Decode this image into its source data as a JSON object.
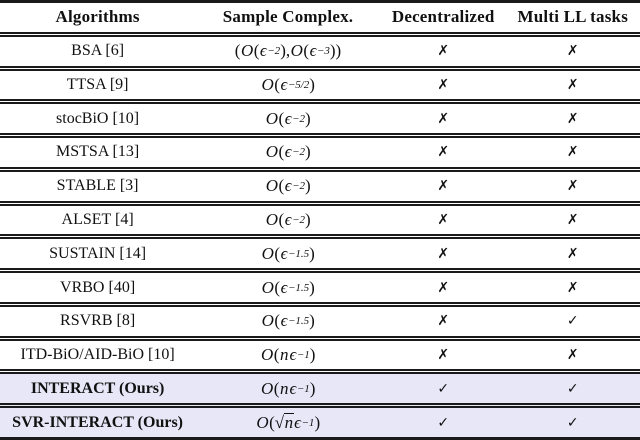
{
  "colors": {
    "highlight_row_bg": "#e7e7f8",
    "rule": "#1a1a1a",
    "text": "#111111"
  },
  "marks": {
    "yes": "✓",
    "no": "✗"
  },
  "table": {
    "columns": [
      "Algorithms",
      "Sample Complex.",
      "Decentralized",
      "Multi LL tasks"
    ],
    "rows": [
      {
        "algorithm": "BSA [6]",
        "complexity": "(O(ϵ^{−2}), O(ϵ^{−3}))",
        "decentralized": "✗",
        "multi_ll_tasks": "✗",
        "highlight": false,
        "bold": false
      },
      {
        "algorithm": "TTSA [9]",
        "complexity": "O(ϵ^{−5/2})",
        "decentralized": "✗",
        "multi_ll_tasks": "✗",
        "highlight": false,
        "bold": false
      },
      {
        "algorithm": "stocBiO [10]",
        "complexity": "O(ϵ^{−2})",
        "decentralized": "✗",
        "multi_ll_tasks": "✗",
        "highlight": false,
        "bold": false
      },
      {
        "algorithm": "MSTSA [13]",
        "complexity": "O(ϵ^{−2})",
        "decentralized": "✗",
        "multi_ll_tasks": "✗",
        "highlight": false,
        "bold": false
      },
      {
        "algorithm": "STABLE [3]",
        "complexity": "O(ϵ^{−2})",
        "decentralized": "✗",
        "multi_ll_tasks": "✗",
        "highlight": false,
        "bold": false
      },
      {
        "algorithm": "ALSET [4]",
        "complexity": "O(ϵ^{−2})",
        "decentralized": "✗",
        "multi_ll_tasks": "✗",
        "highlight": false,
        "bold": false
      },
      {
        "algorithm": "SUSTAIN [14]",
        "complexity": "O(ϵ^{−1.5})",
        "decentralized": "✗",
        "multi_ll_tasks": "✗",
        "highlight": false,
        "bold": false
      },
      {
        "algorithm": "VRBO [40]",
        "complexity": "O(ϵ^{−1.5})",
        "decentralized": "✗",
        "multi_ll_tasks": "✗",
        "highlight": false,
        "bold": false
      },
      {
        "algorithm": "RSVRB [8]",
        "complexity": "O(ϵ^{−1.5})",
        "decentralized": "✗",
        "multi_ll_tasks": "✓",
        "highlight": false,
        "bold": false
      },
      {
        "algorithm": "ITD-BiO/AID-BiO [10]",
        "complexity": "O(nϵ^{−1})",
        "decentralized": "✗",
        "multi_ll_tasks": "✗",
        "highlight": false,
        "bold": false
      },
      {
        "algorithm": "INTERACT (Ours)",
        "complexity": "O(nϵ^{−1})",
        "decentralized": "✓",
        "multi_ll_tasks": "✓",
        "highlight": true,
        "bold": true
      },
      {
        "algorithm": "SVR-INTERACT (Ours)",
        "complexity": "O(√{n}ϵ^{−1})",
        "decentralized": "✓",
        "multi_ll_tasks": "✓",
        "highlight": true,
        "bold": true
      }
    ]
  }
}
